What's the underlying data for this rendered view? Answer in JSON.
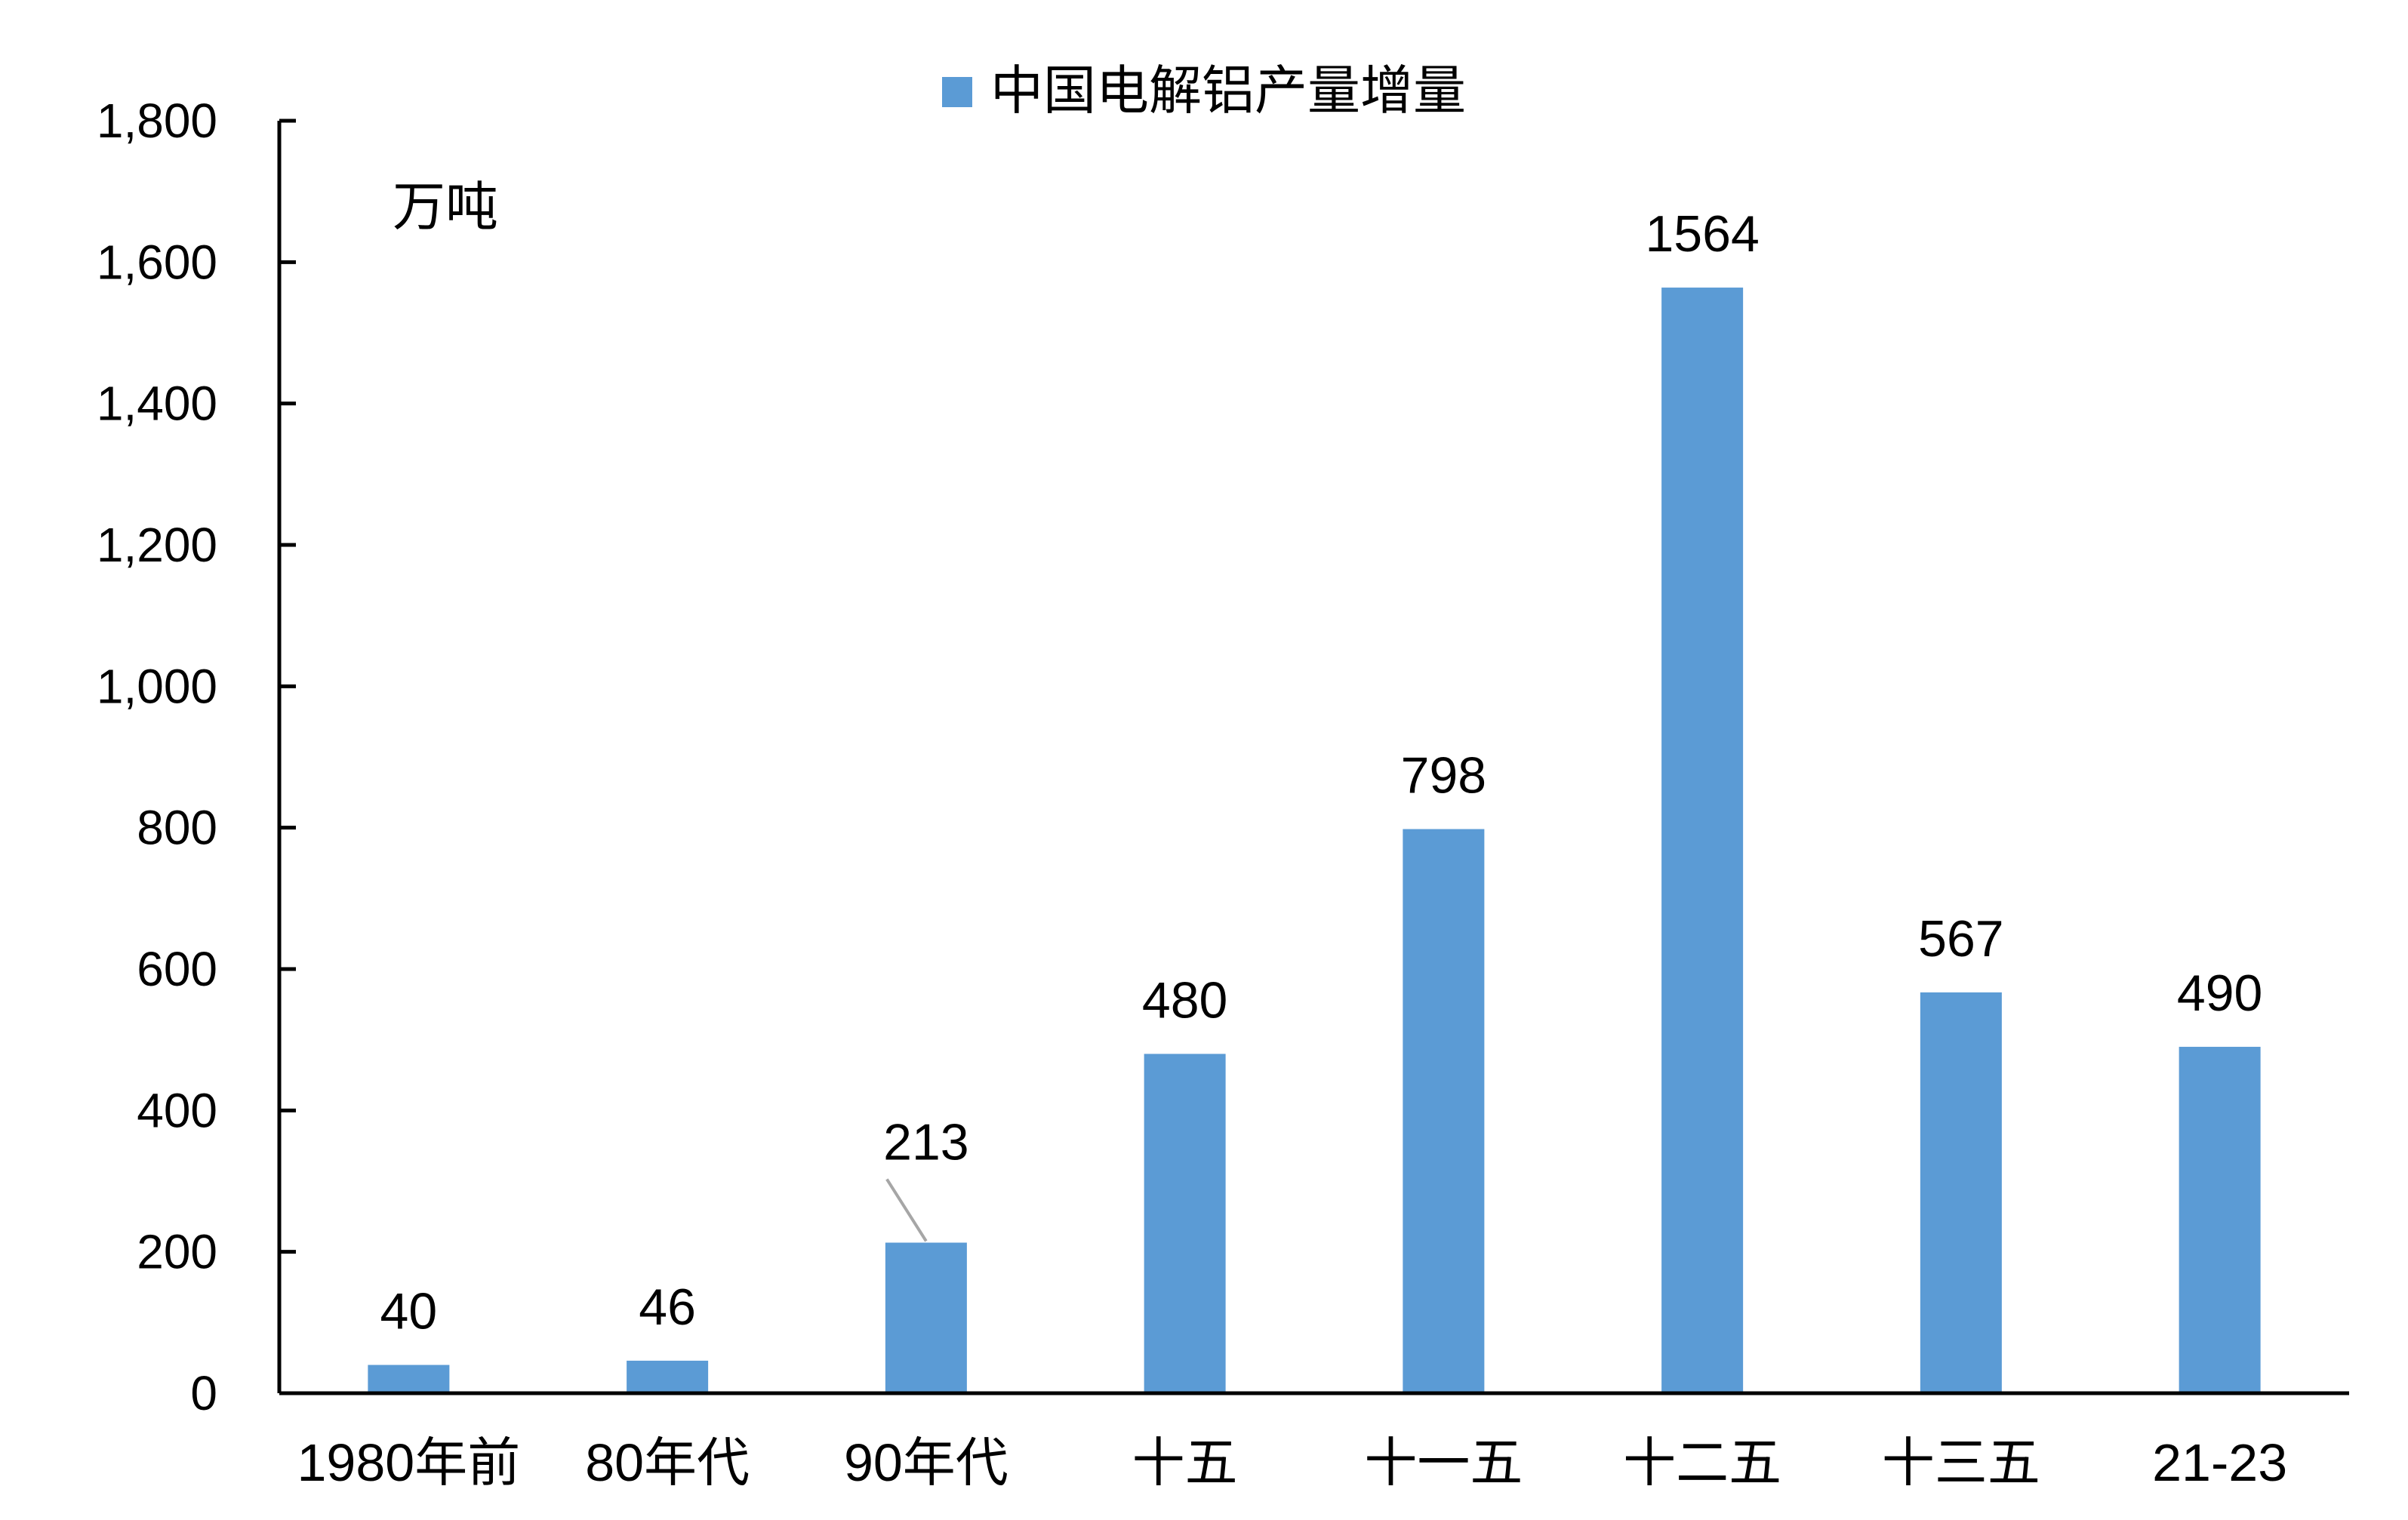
{
  "chart_data": {
    "type": "bar",
    "legend": {
      "label": "中国电解铝产量增量",
      "placement": "top-center"
    },
    "unit": "万吨",
    "categories": [
      "1980年前",
      "80年代",
      "90年代",
      "十五",
      "十一五",
      "十二五",
      "十三五",
      "21-23"
    ],
    "series": [
      {
        "name": "中国电解铝产量增量",
        "values": [
          40,
          46,
          213,
          480,
          798,
          1564,
          567,
          490
        ],
        "data_labels": [
          "40",
          "46",
          "213",
          "480",
          "798",
          "1564",
          "567",
          "490"
        ],
        "color": "#5B9BD5"
      }
    ],
    "ylim": [
      0,
      1800
    ],
    "yticks": [
      0,
      200,
      400,
      600,
      800,
      1000,
      1200,
      1400,
      1600,
      1800
    ],
    "ytick_labels": [
      "0",
      "200",
      "400",
      "600",
      "800",
      "1,000",
      "1,200",
      "1,400",
      "1,600",
      "1,800"
    ],
    "grid": false,
    "callout_category_index": 2
  }
}
